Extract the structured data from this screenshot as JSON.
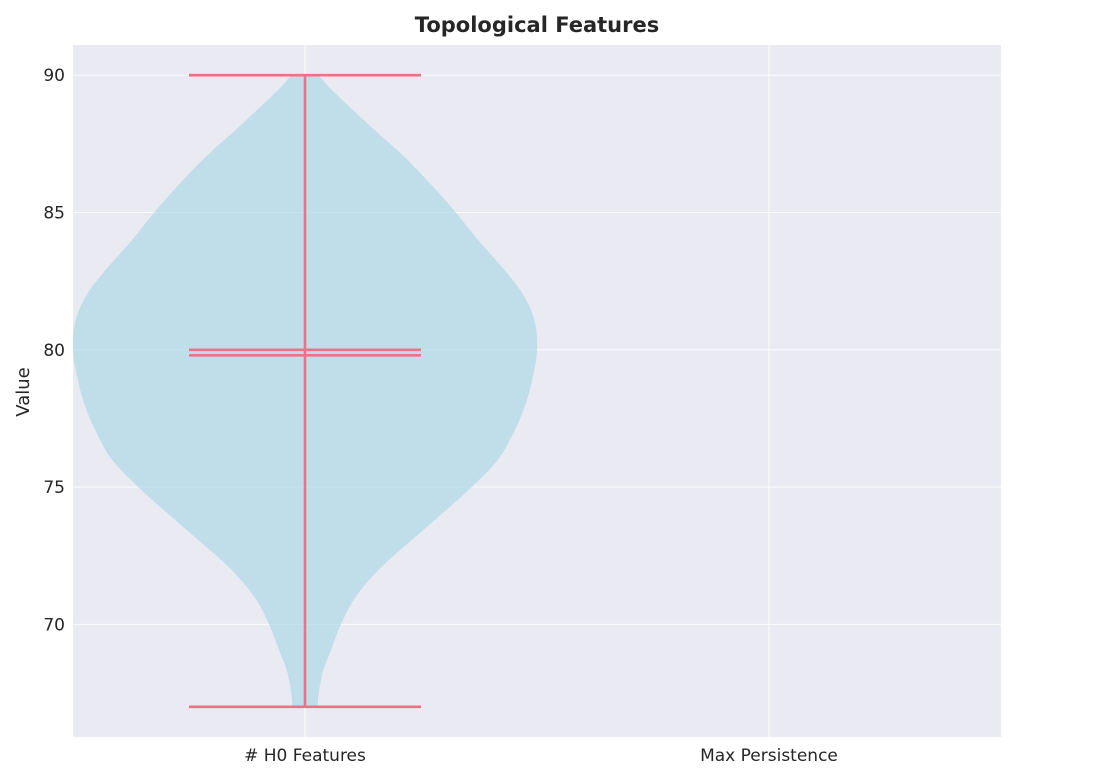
{
  "chart_data": {
    "type": "violin",
    "title": "Topological Features",
    "xlabel": "",
    "ylabel": "Value",
    "categories": [
      "# H0 Features",
      "Max Persistence"
    ],
    "ylim": [
      65.9,
      91.1
    ],
    "yticks": [
      70,
      75,
      80,
      85,
      90
    ],
    "grid": true,
    "colors": {
      "background": "#eaeaf2",
      "violin_fill": "#add8e6",
      "violin_line": "#f07088",
      "grid": "#ffffff"
    },
    "series": [
      {
        "category": "# H0 Features",
        "min": 67,
        "max": 90,
        "mean": 80,
        "median": 79.8,
        "density": [
          [
            67.0,
            0.12
          ],
          [
            67.5,
            0.13
          ],
          [
            68.3,
            0.17
          ],
          [
            69.0,
            0.24
          ],
          [
            70.0,
            0.34
          ],
          [
            71.0,
            0.48
          ],
          [
            72.0,
            0.7
          ],
          [
            73.0,
            0.99
          ],
          [
            74.0,
            1.29
          ],
          [
            75.0,
            1.58
          ],
          [
            76.0,
            1.83
          ],
          [
            77.0,
            1.98
          ],
          [
            78.0,
            2.09
          ],
          [
            79.0,
            2.16
          ],
          [
            80.0,
            2.2
          ],
          [
            81.0,
            2.18
          ],
          [
            82.0,
            2.07
          ],
          [
            83.0,
            1.87
          ],
          [
            84.0,
            1.64
          ],
          [
            85.0,
            1.43
          ],
          [
            86.0,
            1.2
          ],
          [
            87.0,
            0.95
          ],
          [
            88.0,
            0.66
          ],
          [
            89.0,
            0.38
          ],
          [
            89.6,
            0.22
          ],
          [
            90.0,
            0.11
          ]
        ]
      }
    ]
  }
}
